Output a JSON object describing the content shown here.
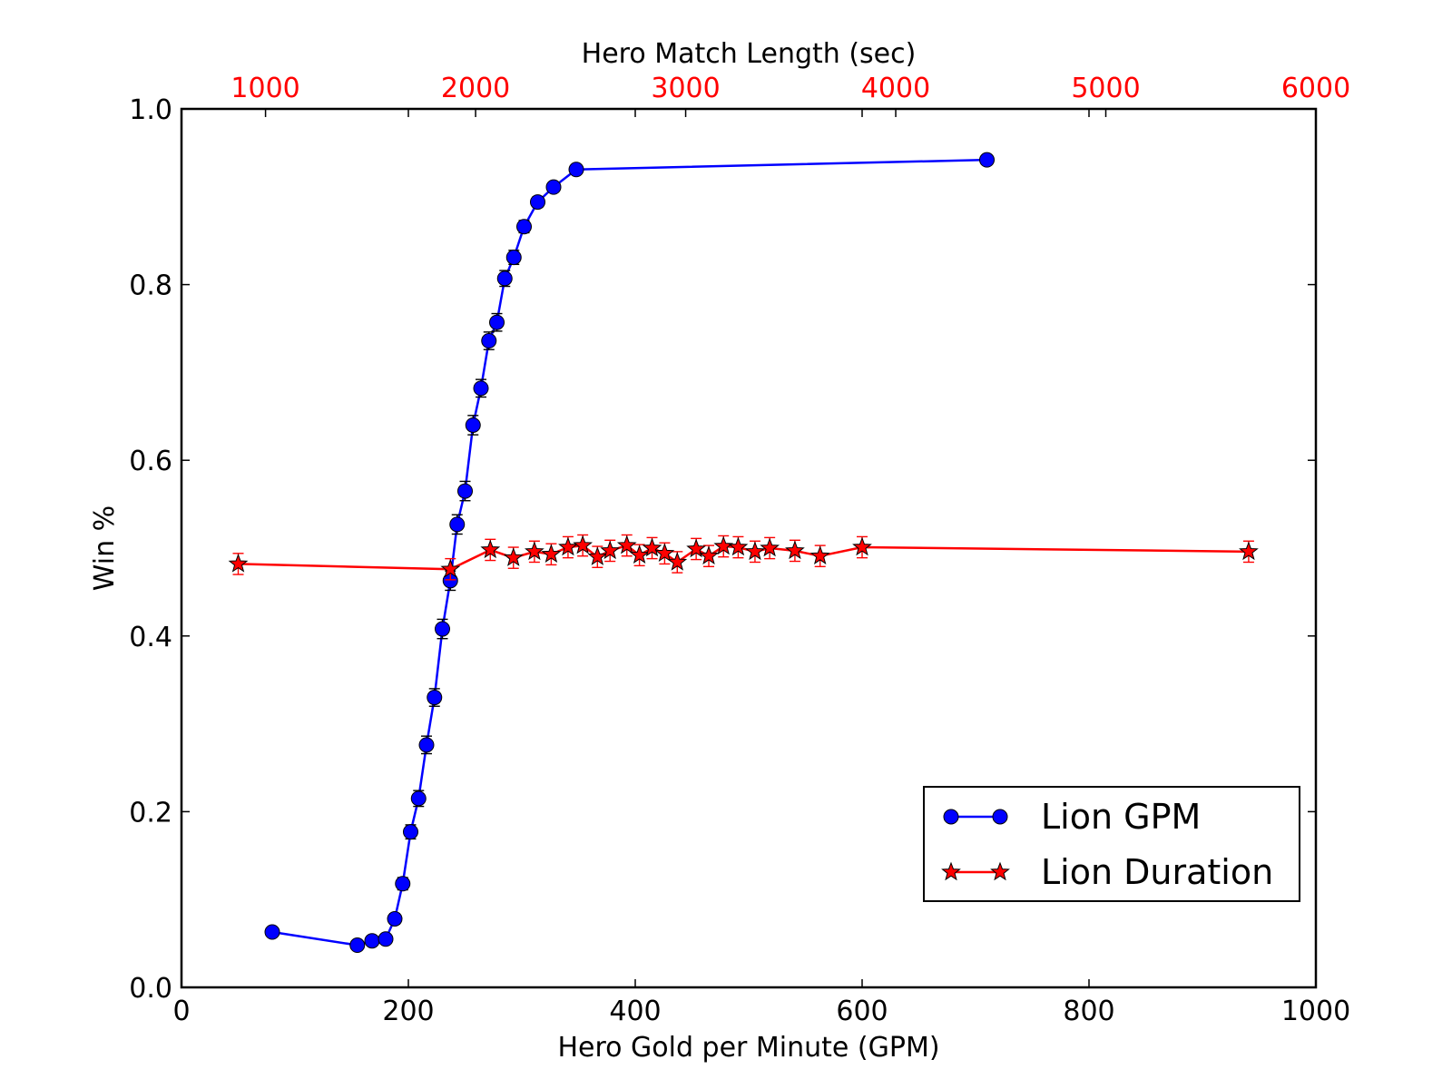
{
  "chart_data": {
    "type": "line",
    "title": "",
    "xlabel": "Hero Gold per Minute (GPM)",
    "ylabel": "Win %",
    "xlim": [
      0,
      1000
    ],
    "ylim": [
      0.0,
      1.0
    ],
    "x_ticks": [
      0,
      200,
      400,
      600,
      800,
      1000
    ],
    "x_tick_labels": [
      "0",
      "200",
      "400",
      "600",
      "800",
      "1000"
    ],
    "y_ticks": [
      0.0,
      0.2,
      0.4,
      0.6,
      0.8,
      1.0
    ],
    "y_tick_labels": [
      "0.0",
      "0.2",
      "0.4",
      "0.6",
      "0.8",
      "1.0"
    ],
    "top_axis": {
      "label": "Hero Match Length (sec)",
      "lim": [
        600,
        6000
      ],
      "ticks": [
        1000,
        2000,
        3000,
        4000,
        5000,
        6000
      ],
      "tick_labels": [
        "1000",
        "2000",
        "3000",
        "4000",
        "5000",
        "6000"
      ],
      "tick_label_color": "#ff0000"
    },
    "grid": false,
    "legend_position": "lower-right",
    "legend": [
      "Lion GPM",
      "Lion Duration"
    ],
    "series": [
      {
        "name": "Lion GPM",
        "axis": "bottom",
        "color": "#0000ff",
        "marker": "circle",
        "x": [
          80,
          155,
          168,
          180,
          188,
          195,
          202,
          209,
          216,
          223,
          230,
          237,
          243,
          250,
          257,
          264,
          271,
          278,
          285,
          293,
          302,
          314,
          328,
          348,
          710
        ],
        "y": [
          0.063,
          0.048,
          0.053,
          0.055,
          0.078,
          0.118,
          0.177,
          0.215,
          0.276,
          0.33,
          0.408,
          0.463,
          0.527,
          0.565,
          0.64,
          0.682,
          0.736,
          0.757,
          0.807,
          0.831,
          0.866,
          0.894,
          0.911,
          0.931,
          0.942
        ],
        "err": [
          0.005,
          0.005,
          0.005,
          0.005,
          0.006,
          0.007,
          0.008,
          0.009,
          0.01,
          0.01,
          0.011,
          0.011,
          0.011,
          0.011,
          0.011,
          0.01,
          0.01,
          0.01,
          0.009,
          0.008,
          0.007,
          0.006,
          0.005,
          0.005,
          0.004
        ]
      },
      {
        "name": "Lion Duration",
        "axis": "top",
        "color": "#ff0000",
        "marker": "star",
        "x": [
          870,
          1880,
          2070,
          2180,
          2280,
          2360,
          2440,
          2510,
          2580,
          2640,
          2720,
          2780,
          2840,
          2900,
          2960,
          3050,
          3110,
          3180,
          3250,
          3330,
          3400,
          3520,
          3640,
          3840,
          5680
        ],
        "y": [
          0.482,
          0.476,
          0.498,
          0.489,
          0.496,
          0.493,
          0.501,
          0.503,
          0.49,
          0.497,
          0.503,
          0.492,
          0.5,
          0.494,
          0.484,
          0.499,
          0.491,
          0.502,
          0.501,
          0.496,
          0.5,
          0.497,
          0.491,
          0.501,
          0.496
        ]
      }
    ]
  }
}
